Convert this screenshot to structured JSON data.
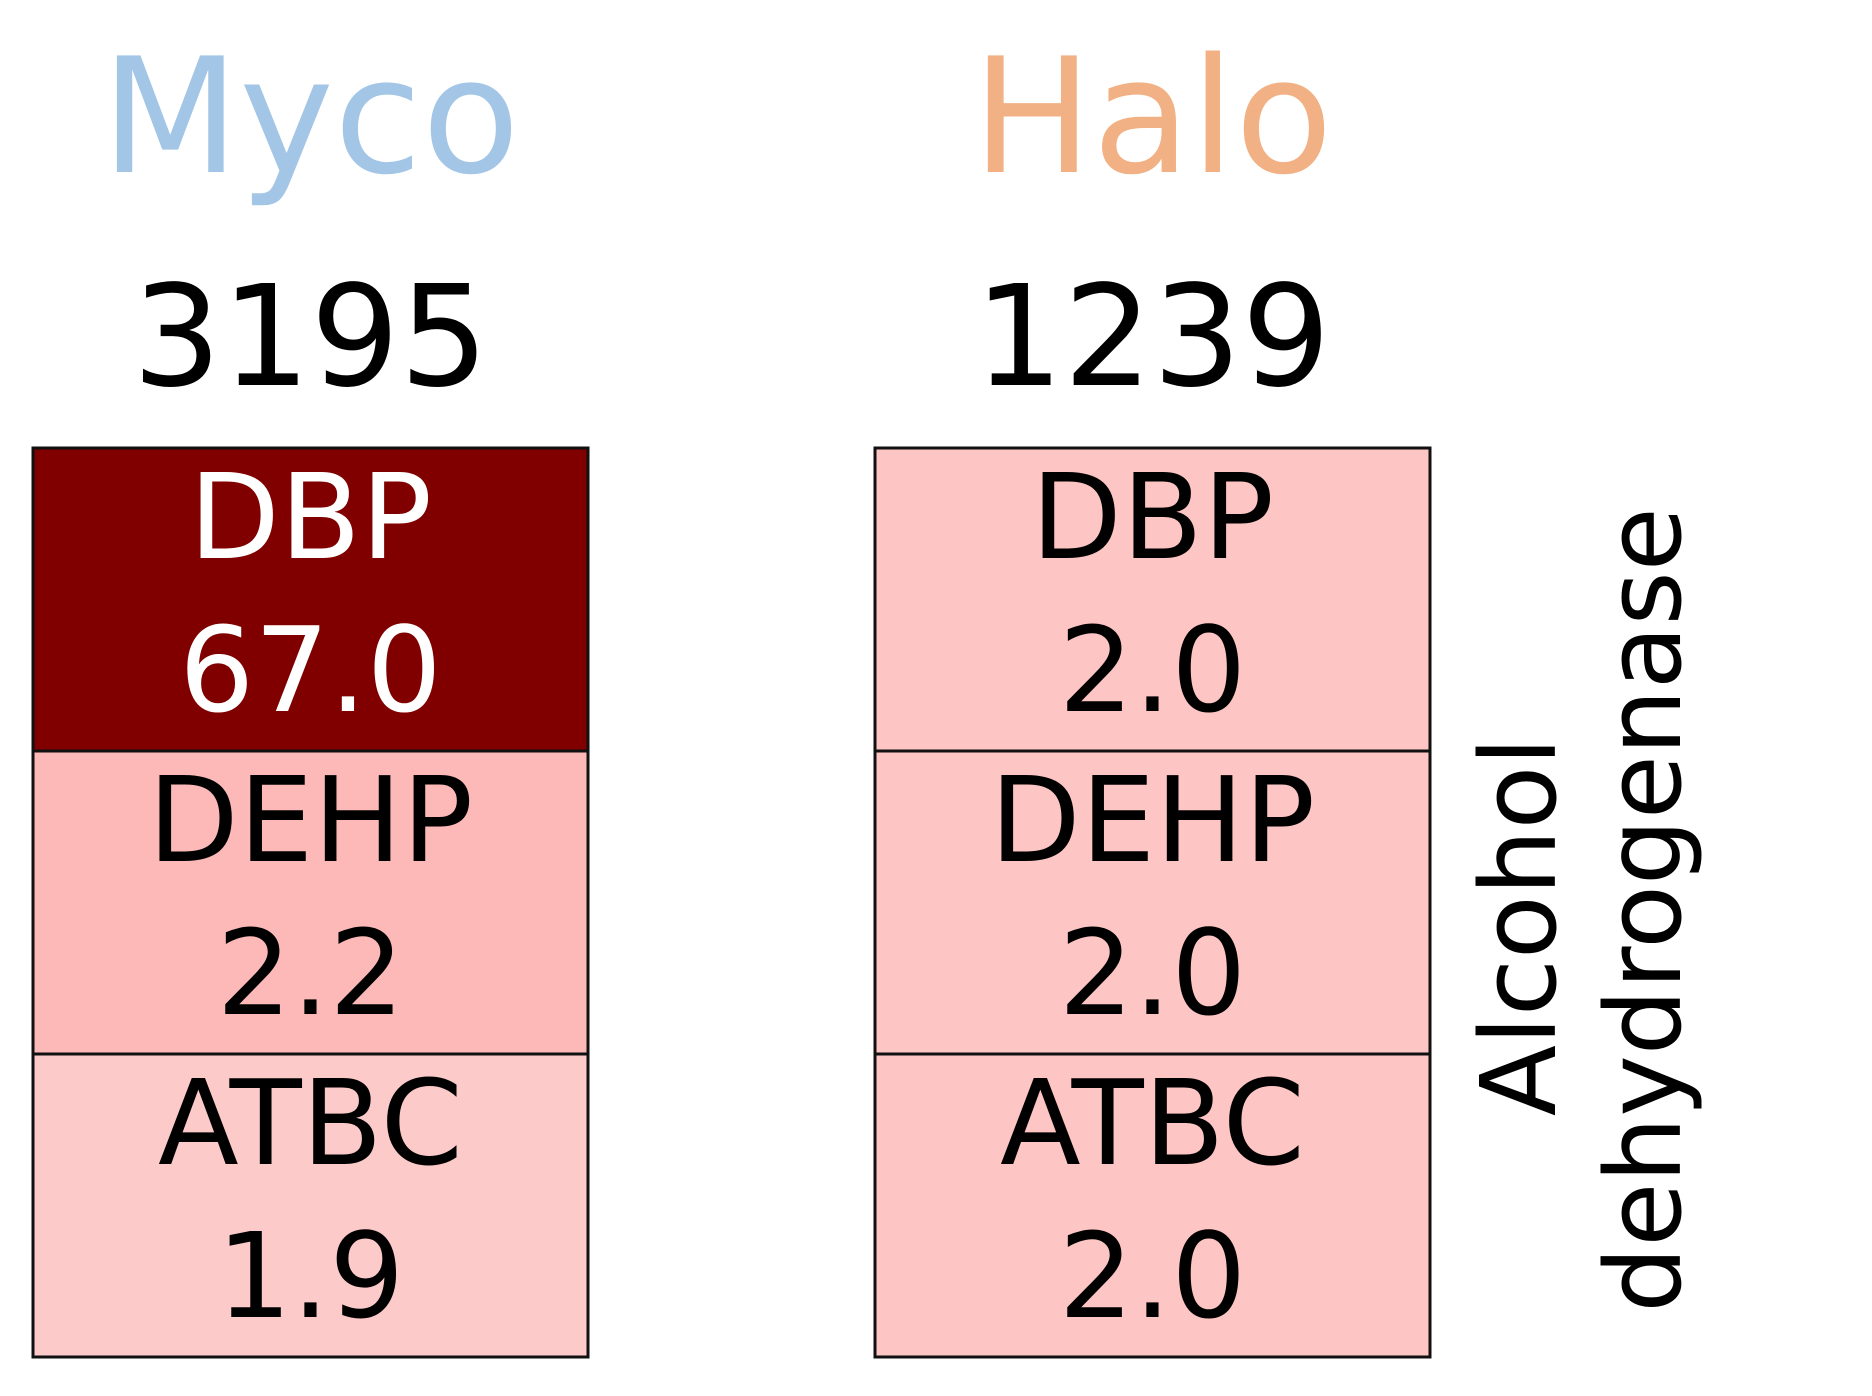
{
  "chart_data": {
    "type": "heatmap",
    "ylabel": "Alcohol dehydrogenase",
    "ylabel_lines": [
      "Alcohol",
      "dehydrogenase"
    ],
    "groups": [
      {
        "name": "Myco",
        "count": "3195",
        "title_color": "#a4c6e6",
        "cells": [
          {
            "label": "DBP",
            "value": "67.0",
            "fill": "#800000",
            "text_color": "#ffffff"
          },
          {
            "label": "DEHP",
            "value": "2.2",
            "fill": "#fcb9b8",
            "text_color": "#000000"
          },
          {
            "label": "ATBC",
            "value": "1.9",
            "fill": "#fdcaca",
            "text_color": "#000000"
          }
        ]
      },
      {
        "name": "Halo",
        "count": "1239",
        "title_color": "#f2b184",
        "cells": [
          {
            "label": "DBP",
            "value": "2.0",
            "fill": "#fdc5c3",
            "text_color": "#000000"
          },
          {
            "label": "DEHP",
            "value": "2.0",
            "fill": "#fdc5c3",
            "text_color": "#000000"
          },
          {
            "label": "ATBC",
            "value": "2.0",
            "fill": "#fdc5c3",
            "text_color": "#000000"
          }
        ]
      }
    ]
  }
}
